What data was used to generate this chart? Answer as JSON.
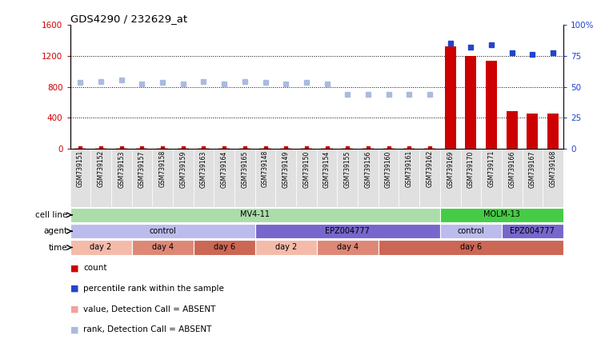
{
  "title": "GDS4290 / 232629_at",
  "samples": [
    "GSM739151",
    "GSM739152",
    "GSM739153",
    "GSM739157",
    "GSM739158",
    "GSM739159",
    "GSM739163",
    "GSM739164",
    "GSM739165",
    "GSM739148",
    "GSM739149",
    "GSM739150",
    "GSM739154",
    "GSM739155",
    "GSM739156",
    "GSM739160",
    "GSM739161",
    "GSM739162",
    "GSM739169",
    "GSM739170",
    "GSM739171",
    "GSM739166",
    "GSM739167",
    "GSM739168"
  ],
  "bar_values": [
    10,
    10,
    10,
    10,
    10,
    10,
    10,
    10,
    10,
    10,
    10,
    10,
    10,
    10,
    10,
    10,
    10,
    10,
    1320,
    1200,
    1140,
    490,
    450,
    450
  ],
  "bar_absent": [
    true,
    true,
    true,
    true,
    true,
    true,
    true,
    true,
    true,
    true,
    true,
    true,
    true,
    true,
    true,
    true,
    true,
    true,
    false,
    false,
    false,
    false,
    false,
    false
  ],
  "rank_values": [
    860,
    870,
    890,
    840,
    855,
    840,
    870,
    840,
    870,
    860,
    840,
    860,
    840,
    700,
    700,
    700,
    700,
    700,
    1360,
    1310,
    1340,
    1240,
    1220,
    1240
  ],
  "rank_absent": [
    true,
    true,
    true,
    true,
    true,
    true,
    true,
    true,
    true,
    true,
    true,
    true,
    true,
    true,
    true,
    true,
    true,
    true,
    false,
    false,
    false,
    false,
    false,
    false
  ],
  "ylim_left": [
    0,
    1600
  ],
  "ylim_right": [
    0,
    100
  ],
  "yticks_left": [
    0,
    400,
    800,
    1200,
    1600
  ],
  "yticks_right": [
    0,
    25,
    50,
    75,
    100
  ],
  "ytick_labels_right": [
    "0",
    "25",
    "50",
    "75",
    "100%"
  ],
  "bar_color": "#cc0000",
  "bar_absent_color": "#f2a0a0",
  "rank_color": "#2244cc",
  "rank_absent_color": "#aabbdd",
  "count_color": "#cc0000",
  "gridline_color": "#000000",
  "cell_line_row": [
    {
      "label": "MV4-11",
      "start": 0,
      "end": 18,
      "color": "#aaddaa"
    },
    {
      "label": "MOLM-13",
      "start": 18,
      "end": 24,
      "color": "#44cc44"
    }
  ],
  "agent_row": [
    {
      "label": "control",
      "start": 0,
      "end": 9,
      "color": "#bbbbee"
    },
    {
      "label": "EPZ004777",
      "start": 9,
      "end": 18,
      "color": "#7766cc"
    },
    {
      "label": "control",
      "start": 18,
      "end": 21,
      "color": "#bbbbee"
    },
    {
      "label": "EPZ004777",
      "start": 21,
      "end": 24,
      "color": "#7766cc"
    }
  ],
  "time_row": [
    {
      "label": "day 2",
      "start": 0,
      "end": 3,
      "color": "#f4bbaa"
    },
    {
      "label": "day 4",
      "start": 3,
      "end": 6,
      "color": "#dd8877"
    },
    {
      "label": "day 6",
      "start": 6,
      "end": 9,
      "color": "#cc6655"
    },
    {
      "label": "day 2",
      "start": 9,
      "end": 12,
      "color": "#f4bbaa"
    },
    {
      "label": "day 4",
      "start": 12,
      "end": 15,
      "color": "#dd8877"
    },
    {
      "label": "day 6",
      "start": 15,
      "end": 24,
      "color": "#cc6655"
    }
  ],
  "legend_items": [
    {
      "label": "count",
      "color": "#cc0000"
    },
    {
      "label": "percentile rank within the sample",
      "color": "#2244cc"
    },
    {
      "label": "value, Detection Call = ABSENT",
      "color": "#f2a0a0"
    },
    {
      "label": "rank, Detection Call = ABSENT",
      "color": "#aabbdd"
    }
  ],
  "row_labels": [
    "cell line",
    "agent",
    "time"
  ]
}
